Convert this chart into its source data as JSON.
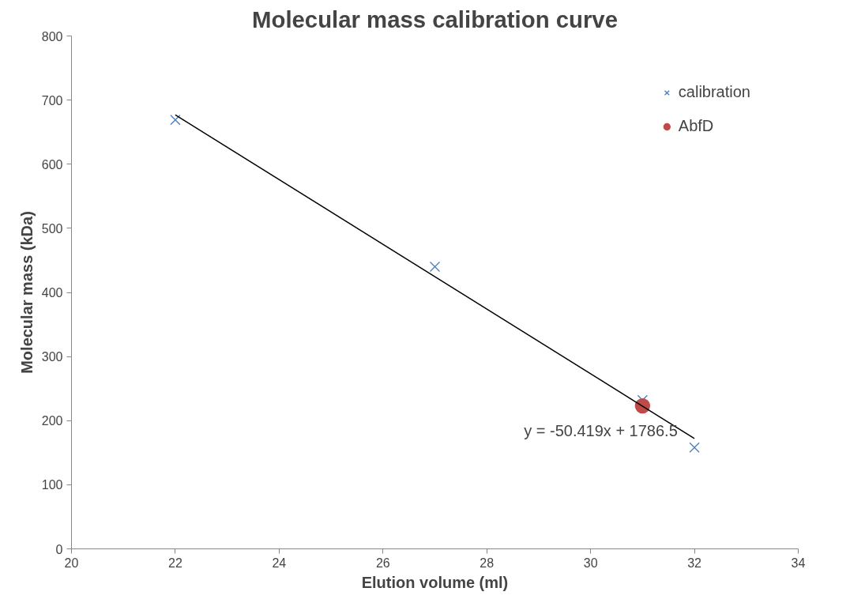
{
  "chart_data": {
    "type": "scatter",
    "title": "Molecular mass calibration curve",
    "xlabel": "Elution volume (ml)",
    "ylabel": "Molecular mass (kDa)",
    "xlim": [
      20,
      34
    ],
    "xticks": [
      20,
      22,
      24,
      26,
      28,
      30,
      32,
      34
    ],
    "ylim": [
      0,
      800
    ],
    "yticks": [
      0,
      100,
      200,
      300,
      400,
      500,
      600,
      700,
      800
    ],
    "grid": false,
    "legend": "top right",
    "series": [
      {
        "name": "calibration",
        "marker": "cross",
        "color": "#4a7ebb",
        "x": [
          22,
          27,
          31,
          32
        ],
        "values": [
          669,
          440,
          232,
          158
        ]
      },
      {
        "name": "AbfD",
        "marker": "circle",
        "color": "#be4b48",
        "x": [
          31
        ],
        "values": [
          223
        ]
      },
      {
        "type": "line",
        "marker": "none",
        "color": "#000000",
        "x": [
          22,
          32
        ],
        "values": [
          677,
          172
        ]
      }
    ],
    "annotations": [
      "y = -50.419x + 1786.5"
    ]
  }
}
